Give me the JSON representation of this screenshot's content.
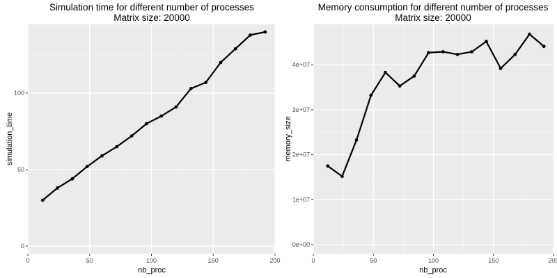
{
  "chart_data": [
    {
      "type": "line",
      "title": "Simulation time for different number of processes",
      "subtitle": "Matrix size: 20000",
      "xlabel": "nb_proc",
      "ylabel": "simulation_time",
      "xlim": [
        0,
        200
      ],
      "ylim": [
        -5,
        145
      ],
      "xticks": [
        0,
        50,
        100,
        150,
        200
      ],
      "xtick_labels": [
        "0",
        "50",
        "100",
        "150",
        "200"
      ],
      "yticks": [
        0,
        50,
        100
      ],
      "ytick_labels": [
        "0",
        "50",
        "100"
      ],
      "grid": true,
      "line_color": "#000000",
      "panel_color": "#ebebeb",
      "series": [
        {
          "x": [
            12,
            24,
            36,
            48,
            60,
            72,
            84,
            96,
            108,
            120,
            132,
            144,
            156,
            168,
            180,
            192
          ],
          "values": [
            30,
            38,
            44,
            52,
            59,
            65,
            72,
            80,
            85,
            91,
            103,
            107,
            120,
            129,
            138,
            140
          ]
        }
      ]
    },
    {
      "type": "line",
      "title": "Memory consumption for different number of processes",
      "subtitle": "Matrix size: 20000",
      "xlabel": "nb_proc",
      "ylabel": "memory_size",
      "xlim": [
        0,
        200
      ],
      "ylim": [
        -2000000,
        49000000
      ],
      "xticks": [
        0,
        50,
        100,
        150,
        200
      ],
      "xtick_labels": [
        "0",
        "50",
        "100",
        "150",
        "200"
      ],
      "yticks": [
        0,
        10000000,
        20000000,
        30000000,
        40000000
      ],
      "ytick_labels": [
        "0e+00",
        "1e+07",
        "2e+07",
        "3e+07",
        "4e+07"
      ],
      "grid": true,
      "line_color": "#000000",
      "panel_color": "#ebebeb",
      "series": [
        {
          "x": [
            12,
            24,
            36,
            48,
            60,
            72,
            84,
            96,
            108,
            120,
            132,
            144,
            156,
            168,
            180,
            192
          ],
          "values": [
            17500000,
            15200000,
            23300000,
            33200000,
            38300000,
            35300000,
            37500000,
            42700000,
            42900000,
            42300000,
            42900000,
            45200000,
            39200000,
            42300000,
            46800000,
            44100000
          ]
        }
      ]
    }
  ]
}
